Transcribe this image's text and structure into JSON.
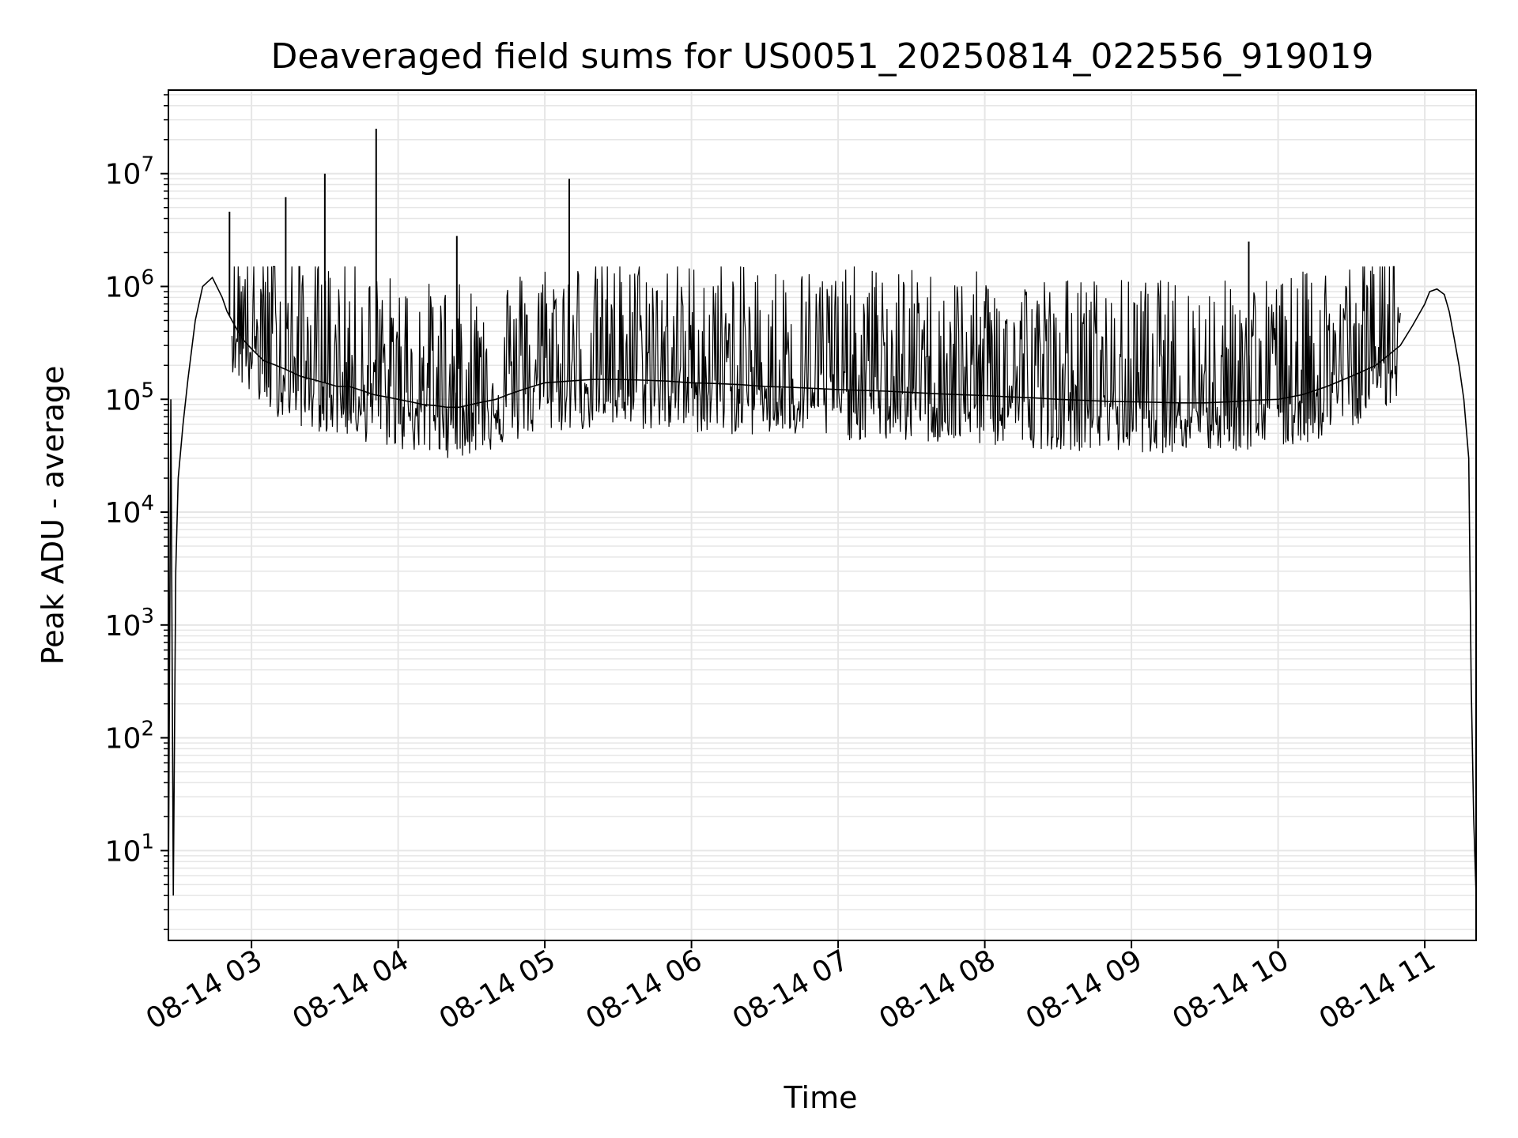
{
  "chart_data": {
    "type": "line",
    "title": "Deaveraged field sums for US0051_20250814_022556_919019",
    "xlabel": "Time",
    "ylabel": "Peak ADU - average",
    "yscale": "log",
    "grid": true,
    "line_color": "#000000",
    "grid_color": "#e6e6e6",
    "xlim": [
      "2025-08-14 02:26",
      "2025-08-14 11:21"
    ],
    "ylim": [
      1.6,
      55000000
    ],
    "xticks": [
      {
        "value": "2025-08-14 03:00",
        "label": "08-14 03"
      },
      {
        "value": "2025-08-14 04:00",
        "label": "08-14 04"
      },
      {
        "value": "2025-08-14 05:00",
        "label": "08-14 05"
      },
      {
        "value": "2025-08-14 06:00",
        "label": "08-14 06"
      },
      {
        "value": "2025-08-14 07:00",
        "label": "08-14 07"
      },
      {
        "value": "2025-08-14 08:00",
        "label": "08-14 08"
      },
      {
        "value": "2025-08-14 09:00",
        "label": "08-14 09"
      },
      {
        "value": "2025-08-14 10:00",
        "label": "08-14 10"
      },
      {
        "value": "2025-08-14 11:00",
        "label": "08-14 11"
      }
    ],
    "yticks": [
      {
        "value": 10,
        "base": "10",
        "exp": "1"
      },
      {
        "value": 100,
        "base": "10",
        "exp": "2"
      },
      {
        "value": 1000,
        "base": "10",
        "exp": "3"
      },
      {
        "value": 10000,
        "base": "10",
        "exp": "4"
      },
      {
        "value": 100000,
        "base": "10",
        "exp": "5"
      },
      {
        "value": 1000000,
        "base": "10",
        "exp": "6"
      },
      {
        "value": 10000000,
        "base": "10",
        "exp": "7"
      }
    ],
    "series": [
      {
        "x": [
          "2025-08-14 02:26",
          "2025-08-14 02:27",
          "2025-08-14 02:28",
          "2025-08-14 02:29",
          "2025-08-14 02:30",
          "2025-08-14 02:32",
          "2025-08-14 02:34",
          "2025-08-14 02:37",
          "2025-08-14 02:40",
          "2025-08-14 02:44",
          "2025-08-14 02:48",
          "2025-08-14 02:50",
          "2025-08-14 02:52",
          "2025-08-14 02:56",
          "2025-08-14 03:00",
          "2025-08-14 03:05",
          "2025-08-14 03:10",
          "2025-08-14 03:15",
          "2025-08-14 03:20",
          "2025-08-14 03:25",
          "2025-08-14 03:30",
          "2025-08-14 03:35",
          "2025-08-14 03:40",
          "2025-08-14 03:45",
          "2025-08-14 03:50",
          "2025-08-14 03:55",
          "2025-08-14 04:00",
          "2025-08-14 04:05",
          "2025-08-14 04:10",
          "2025-08-14 04:15",
          "2025-08-14 04:20",
          "2025-08-14 04:25",
          "2025-08-14 04:30",
          "2025-08-14 04:35",
          "2025-08-14 04:40",
          "2025-08-14 04:45",
          "2025-08-14 04:50",
          "2025-08-14 04:55",
          "2025-08-14 05:00",
          "2025-08-14 05:10",
          "2025-08-14 05:20",
          "2025-08-14 05:30",
          "2025-08-14 05:40",
          "2025-08-14 05:50",
          "2025-08-14 06:00",
          "2025-08-14 06:10",
          "2025-08-14 06:20",
          "2025-08-14 06:30",
          "2025-08-14 06:40",
          "2025-08-14 06:50",
          "2025-08-14 07:00",
          "2025-08-14 07:10",
          "2025-08-14 07:20",
          "2025-08-14 07:30",
          "2025-08-14 07:40",
          "2025-08-14 07:50",
          "2025-08-14 08:00",
          "2025-08-14 08:10",
          "2025-08-14 08:20",
          "2025-08-14 08:30",
          "2025-08-14 08:40",
          "2025-08-14 08:50",
          "2025-08-14 09:00",
          "2025-08-14 09:10",
          "2025-08-14 09:20",
          "2025-08-14 09:30",
          "2025-08-14 09:40",
          "2025-08-14 09:50",
          "2025-08-14 10:00",
          "2025-08-14 10:10",
          "2025-08-14 10:20",
          "2025-08-14 10:30",
          "2025-08-14 10:40",
          "2025-08-14 10:50",
          "2025-08-14 10:55",
          "2025-08-14 11:00",
          "2025-08-14 11:02",
          "2025-08-14 11:05",
          "2025-08-14 11:08",
          "2025-08-14 11:10",
          "2025-08-14 11:12",
          "2025-08-14 11:14",
          "2025-08-14 11:16",
          "2025-08-14 11:18",
          "2025-08-14 11:19",
          "2025-08-14 11:20",
          "2025-08-14 11:21"
        ],
        "y": [
          4,
          100000,
          4,
          3000,
          20000,
          60000,
          150000,
          500000,
          1000000,
          1200000,
          800000,
          600000,
          500000,
          350000,
          280000,
          220000,
          200000,
          180000,
          160000,
          150000,
          140000,
          130000,
          130000,
          120000,
          110000,
          105000,
          100000,
          95000,
          90000,
          88000,
          85000,
          85000,
          90000,
          95000,
          100000,
          110000,
          120000,
          130000,
          140000,
          145000,
          150000,
          150000,
          148000,
          145000,
          140000,
          138000,
          135000,
          130000,
          128000,
          125000,
          122000,
          120000,
          118000,
          115000,
          112000,
          110000,
          108000,
          105000,
          103000,
          100000,
          98000,
          96000,
          95000,
          94000,
          93000,
          93000,
          95000,
          98000,
          100000,
          110000,
          130000,
          160000,
          200000,
          300000,
          450000,
          700000,
          900000,
          950000,
          850000,
          600000,
          350000,
          200000,
          100000,
          30000,
          300,
          20,
          4
        ]
      }
    ],
    "spikes": [
      {
        "x": "2025-08-14 02:51",
        "y": 4600000
      },
      {
        "x": "2025-08-14 03:14",
        "y": 6200000
      },
      {
        "x": "2025-08-14 03:30",
        "y": 10000000
      },
      {
        "x": "2025-08-14 03:51",
        "y": 25000000
      },
      {
        "x": "2025-08-14 04:24",
        "y": 2800000
      },
      {
        "x": "2025-08-14 05:10",
        "y": 9000000
      },
      {
        "x": "2025-08-14 09:48",
        "y": 2500000
      }
    ]
  }
}
